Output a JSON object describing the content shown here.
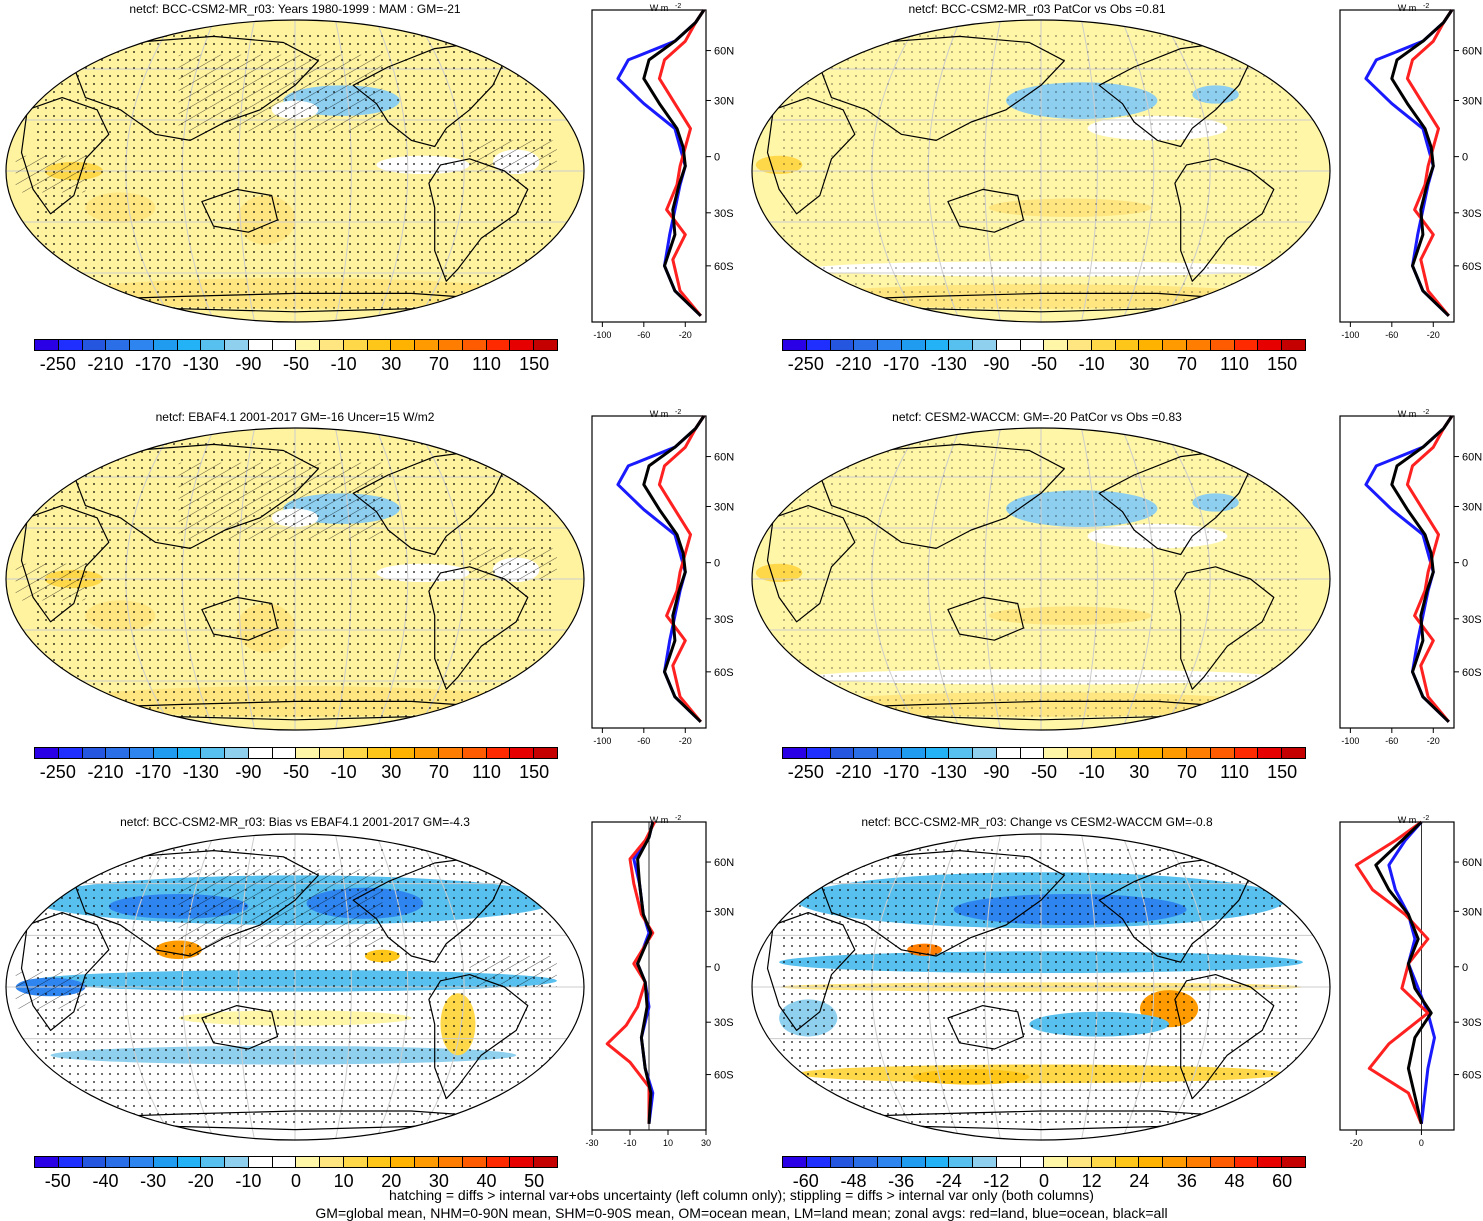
{
  "panels": [
    {
      "title": "netcf: BCC-CSM2-MR_r03: Years 1980-1999 : MAM : GM=-21",
      "style": "mean",
      "hatch": true
    },
    {
      "title": "netcf: BCC-CSM2-MR_r03 PatCor vs Obs =0.81",
      "style": "mean2",
      "hatch": false
    },
    {
      "title": "netcf: EBAF4.1 2001-2017 GM=-16 Uncer=15 W/m2",
      "style": "mean",
      "hatch": true
    },
    {
      "title": "netcf: CESM2-WACCM: GM=-20 PatCor vs Obs =0.83",
      "style": "mean2",
      "hatch": false
    },
    {
      "title": "netcf: BCC-CSM2-MR_r03: Bias vs EBAF4.1 2001-2017 GM=-4.3",
      "style": "bias",
      "hatch": true
    },
    {
      "title": "netcf: BCC-CSM2-MR_r03: Change vs CESM2-WACCM GM=-0.8",
      "style": "change",
      "hatch": false
    }
  ],
  "zonal": {
    "unit": "W m",
    "unit_sup": "-2",
    "lat_labels": [
      "60N",
      "30N",
      "0",
      "30S",
      "60S"
    ],
    "ticks_mean": [
      "-100",
      "-60",
      "-20"
    ],
    "ticks_bias": [
      "-30",
      "-10",
      "10",
      "30"
    ],
    "ticks_change": [
      "-20",
      "0"
    ],
    "colors": {
      "land": "#ff2020",
      "ocean": "#1a1aff",
      "all": "#000000"
    }
  },
  "colorbars": {
    "mean": {
      "labels": [
        "-250",
        "-210",
        "-170",
        "-130",
        "-90",
        "-50",
        "-10",
        "30",
        "70",
        "110",
        "150"
      ],
      "colors": [
        "#2a00e6",
        "#1f2fff",
        "#2456e0",
        "#2a6ee8",
        "#2f85f0",
        "#1f9bf0",
        "#22b2f5",
        "#57c0ee",
        "#8ed0ee",
        "#ffffff",
        "#ffffff",
        "#fff6a8",
        "#ffe680",
        "#ffd84a",
        "#ffc61a",
        "#ffb300",
        "#ff9b00",
        "#ff7d00",
        "#ff5b00",
        "#ff2a00",
        "#e60000",
        "#c40000"
      ]
    },
    "bias": {
      "labels": [
        "-50",
        "-40",
        "-30",
        "-20",
        "-10",
        "0",
        "10",
        "20",
        "30",
        "40",
        "50"
      ],
      "colors": [
        "#2a00e6",
        "#1f2fff",
        "#2456e0",
        "#2a6ee8",
        "#2f85f0",
        "#1f9bf0",
        "#22b2f5",
        "#57c0ee",
        "#8ed0ee",
        "#ffffff",
        "#ffffff",
        "#fff6a8",
        "#ffe680",
        "#ffd84a",
        "#ffc61a",
        "#ffb300",
        "#ff9b00",
        "#ff7d00",
        "#ff5b00",
        "#ff2a00",
        "#e60000",
        "#c40000"
      ]
    },
    "change": {
      "labels": [
        "-60",
        "-48",
        "-36",
        "-24",
        "-12",
        "0",
        "12",
        "24",
        "36",
        "48",
        "60"
      ],
      "colors": [
        "#2a00e6",
        "#1f2fff",
        "#2456e0",
        "#2a6ee8",
        "#2f85f0",
        "#1f9bf0",
        "#22b2f5",
        "#57c0ee",
        "#8ed0ee",
        "#ffffff",
        "#ffffff",
        "#fff6a8",
        "#ffe680",
        "#ffd84a",
        "#ffc61a",
        "#ffb300",
        "#ff9b00",
        "#ff7d00",
        "#ff5b00",
        "#ff2a00",
        "#e60000",
        "#c40000"
      ]
    }
  },
  "footer": {
    "line1": "hatching = diffs > internal var+obs uncertainty (left column only); stippling = diffs > internal var only (both columns)",
    "line2": "GM=global mean, NHM=0-90N mean, SHM=0-90S mean, OM=ocean mean, LM=land mean; zonal avgs: red=land, blue=ocean, black=all"
  }
}
